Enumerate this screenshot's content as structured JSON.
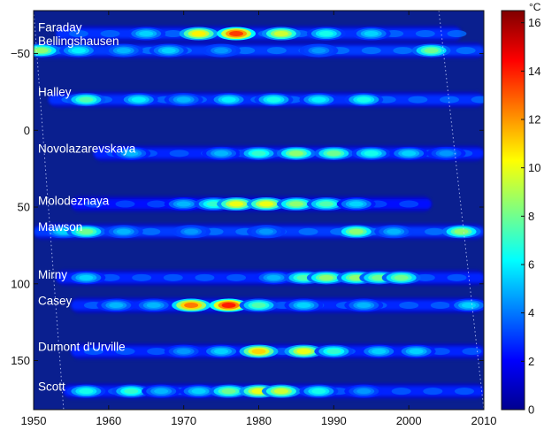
{
  "chart_data": {
    "type": "heatmap",
    "title": "",
    "xlabel": "",
    "ylabel": "",
    "xlim": [
      1950,
      2010
    ],
    "ylim": [
      -78,
      182
    ],
    "x_ticks": [
      1950,
      1960,
      1970,
      1980,
      1990,
      2000,
      2010
    ],
    "y_ticks": [
      -50,
      0,
      50,
      100,
      150
    ],
    "y_tick_labels": [
      "−50",
      "0",
      "50",
      "100",
      "150"
    ],
    "grid": false,
    "colorbar": {
      "unit": "°C",
      "range": [
        0,
        16.5
      ],
      "ticks": [
        0,
        2,
        4,
        6,
        8,
        10,
        12,
        14,
        16
      ]
    },
    "stations": [
      {
        "name": "Faraday",
        "y": -67
      },
      {
        "name": "Bellingshausen",
        "y": -58
      },
      {
        "name": "Halley",
        "y": -25
      },
      {
        "name": "Novolazarevskaya",
        "y": 12
      },
      {
        "name": "Molodeznaya",
        "y": 46
      },
      {
        "name": "Mawson",
        "y": 63
      },
      {
        "name": "Mirny",
        "y": 94
      },
      {
        "name": "Casey",
        "y": 111
      },
      {
        "name": "Dumont d'Urville",
        "y": 141
      },
      {
        "name": "Scott",
        "y": 167
      }
    ],
    "bands": [
      {
        "y": -63,
        "from": 1953,
        "to": 2007,
        "base": 2.8,
        "peaks": [
          [
            1965,
            5.5
          ],
          [
            1972,
            10.5
          ],
          [
            1977,
            13.5
          ],
          [
            1983,
            9.5
          ],
          [
            1989,
            6.5
          ],
          [
            1995,
            5.5
          ]
        ]
      },
      {
        "y": -52,
        "from": 1950,
        "to": 2010,
        "base": 3.0,
        "peaks": [
          [
            1951,
            8.5
          ],
          [
            1956,
            6.0
          ],
          [
            1962,
            5.0
          ],
          [
            1968,
            5.5
          ],
          [
            1975,
            4.5
          ],
          [
            1988,
            4.5
          ],
          [
            2003,
            8.0
          ]
        ]
      },
      {
        "y": -20,
        "from": 1952,
        "to": 2010,
        "base": 2.8,
        "peaks": [
          [
            1957,
            7.5
          ],
          [
            1964,
            6.0
          ],
          [
            1970,
            5.0
          ],
          [
            1976,
            6.0
          ],
          [
            1982,
            6.5
          ],
          [
            1988,
            6.0
          ],
          [
            1994,
            6.5
          ]
        ]
      },
      {
        "y": 15,
        "from": 1958,
        "to": 2010,
        "base": 2.6,
        "peaks": [
          [
            1963,
            5.0
          ],
          [
            1975,
            5.0
          ],
          [
            1980,
            7.0
          ],
          [
            1985,
            8.5
          ],
          [
            1990,
            8.0
          ],
          [
            1995,
            6.5
          ],
          [
            2000,
            5.5
          ],
          [
            2005,
            4.5
          ]
        ]
      },
      {
        "y": 48,
        "from": 1955,
        "to": 2003,
        "base": 2.3,
        "peaks": [
          [
            1970,
            5.0
          ],
          [
            1974,
            7.0
          ],
          [
            1977,
            10.0
          ],
          [
            1981,
            10.0
          ],
          [
            1985,
            8.5
          ],
          [
            1989,
            7.5
          ],
          [
            1993,
            5.5
          ]
        ]
      },
      {
        "y": 66,
        "from": 1950,
        "to": 2010,
        "base": 3.0,
        "peaks": [
          [
            1954,
            5.5
          ],
          [
            1957,
            8.0
          ],
          [
            1962,
            5.0
          ],
          [
            1971,
            4.5
          ],
          [
            1981,
            4.5
          ],
          [
            1993,
            8.5
          ],
          [
            1998,
            5.0
          ],
          [
            2007,
            8.5
          ]
        ]
      },
      {
        "y": 96,
        "from": 1953,
        "to": 2010,
        "base": 2.6,
        "peaks": [
          [
            1957,
            5.5
          ],
          [
            1982,
            5.0
          ],
          [
            1986,
            7.5
          ],
          [
            1989,
            8.5
          ],
          [
            1993,
            8.5
          ],
          [
            1996,
            8.0
          ],
          [
            1999,
            8.0
          ]
        ]
      },
      {
        "y": 114,
        "from": 1955,
        "to": 2010,
        "base": 2.7,
        "peaks": [
          [
            1961,
            5.0
          ],
          [
            1966,
            5.0
          ],
          [
            1971,
            12.5
          ],
          [
            1976,
            14.0
          ],
          [
            1980,
            7.5
          ],
          [
            1986,
            5.5
          ],
          [
            1994,
            5.0
          ],
          [
            2008,
            5.5
          ]
        ]
      },
      {
        "y": 144,
        "from": 1955,
        "to": 2010,
        "base": 2.6,
        "peaks": [
          [
            1970,
            4.5
          ],
          [
            1975,
            5.5
          ],
          [
            1980,
            11.0
          ],
          [
            1986,
            10.0
          ],
          [
            1990,
            7.0
          ],
          [
            1996,
            5.5
          ],
          [
            2001,
            5.5
          ]
        ]
      },
      {
        "y": 170,
        "from": 1954,
        "to": 2010,
        "base": 2.6,
        "peaks": [
          [
            1957,
            6.5
          ],
          [
            1963,
            7.0
          ],
          [
            1967,
            5.0
          ],
          [
            1972,
            5.5
          ],
          [
            1976,
            8.0
          ],
          [
            1980,
            10.0
          ],
          [
            1983,
            9.5
          ],
          [
            1988,
            6.5
          ],
          [
            1994,
            4.5
          ]
        ]
      }
    ],
    "cone_of_influence": {
      "left_x": [
        1950,
        1954
      ],
      "right_x": [
        2004,
        2010
      ]
    }
  },
  "colors": {
    "background": "#0a1f8f",
    "axis": "#111111",
    "station_label": "#ffffff",
    "colormap": [
      "#00008f",
      "#0000ff",
      "#00ffff",
      "#ffff00",
      "#ff0000",
      "#800000"
    ]
  }
}
